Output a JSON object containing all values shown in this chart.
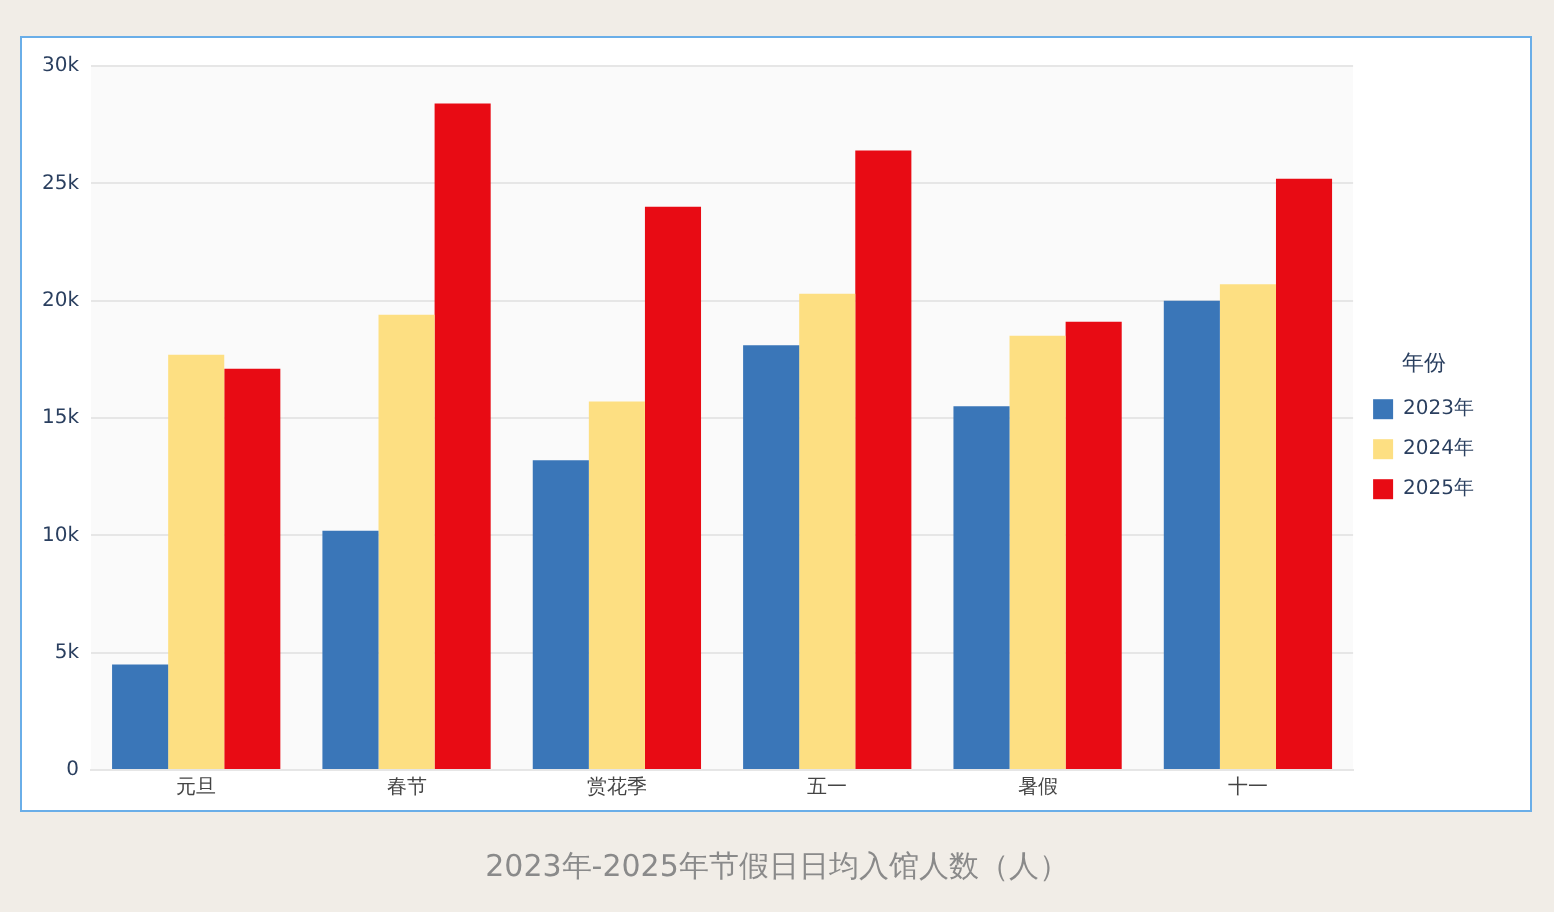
{
  "chart_data": {
    "type": "bar",
    "title": "2023年-2025年节假日日均入馆人数（人）",
    "legend_title": "年份",
    "categories": [
      "元旦",
      "春节",
      "赏花季",
      "五一",
      "暑假",
      "十一"
    ],
    "series": [
      {
        "name": "2023年",
        "color": "#3a76b8",
        "values": [
          4500,
          10200,
          13200,
          18100,
          15500,
          20000
        ]
      },
      {
        "name": "2024年",
        "color": "#fddf82",
        "values": [
          17700,
          19400,
          15700,
          20300,
          18500,
          20700
        ]
      },
      {
        "name": "2025年",
        "color": "#e80b14",
        "values": [
          17100,
          28400,
          24000,
          26400,
          19100,
          25200
        ]
      }
    ],
    "ylim": [
      0,
      30000
    ],
    "yticks": [
      0,
      {
        "value": 5000,
        "label": "5k"
      },
      {
        "value": 10000,
        "label": "10k"
      },
      {
        "value": 15000,
        "label": "15k"
      },
      {
        "value": 20000,
        "label": "20k"
      },
      {
        "value": 25000,
        "label": "25k"
      },
      {
        "value": 30000,
        "label": "30k"
      }
    ],
    "grid": "y",
    "legend": "right"
  }
}
